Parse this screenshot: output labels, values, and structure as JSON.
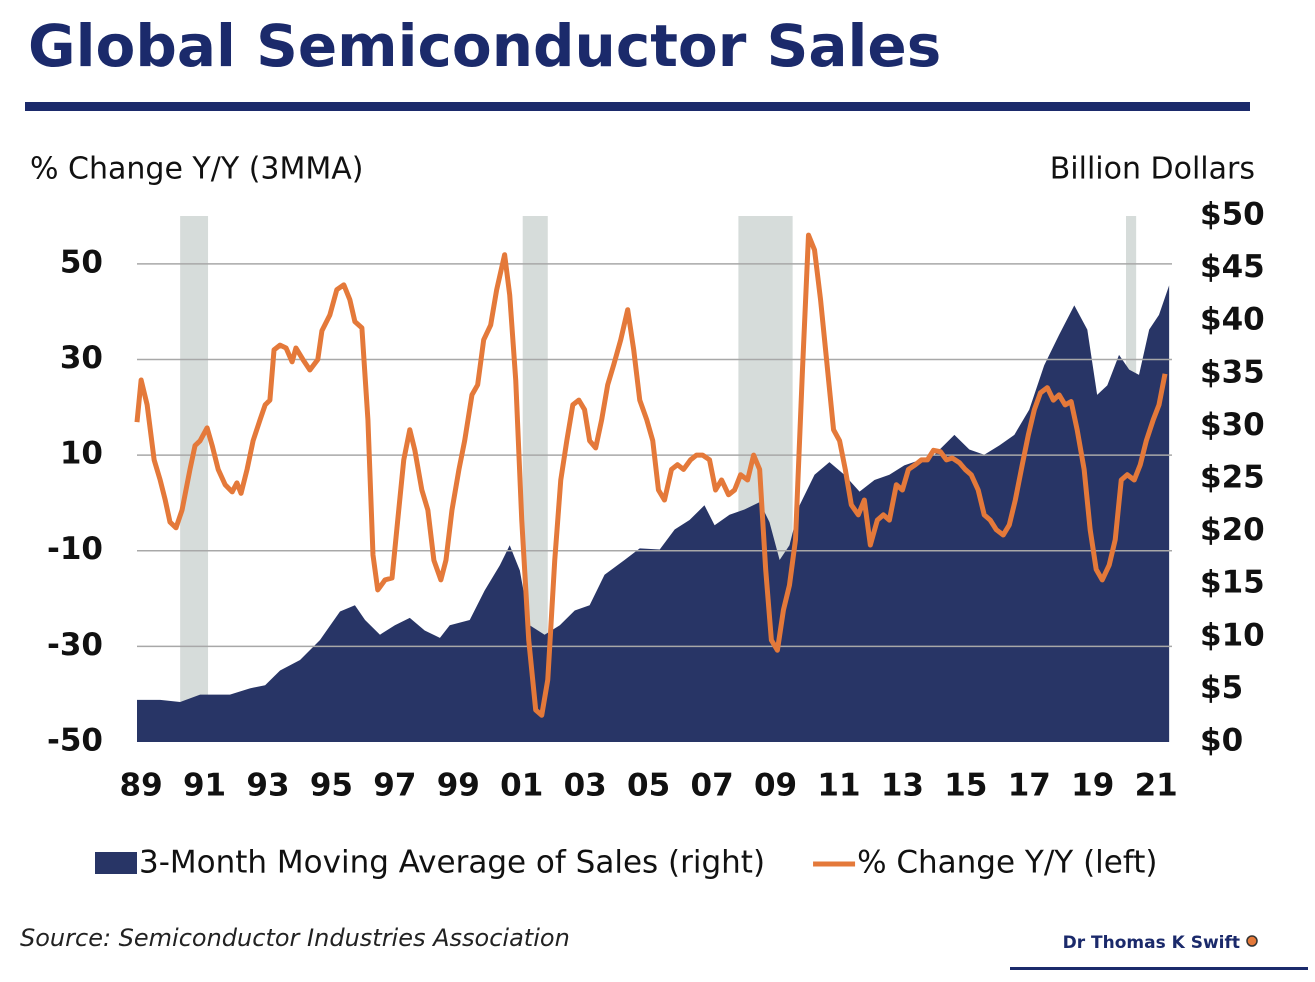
{
  "chart_data": {
    "type": "line",
    "title": "Global Semiconductor Sales",
    "ylabel": "% Change Y/Y (3MMA)",
    "y2label": "Billion Dollars",
    "source": "Source: Semiconductor Industries Association",
    "author": "Dr Thomas K Swift",
    "xlim": [
      1988.87,
      2021.5
    ],
    "xticks": [
      {
        "value": 1989,
        "label": "89"
      },
      {
        "value": 1991,
        "label": "91"
      },
      {
        "value": 1993,
        "label": "93"
      },
      {
        "value": 1995,
        "label": "95"
      },
      {
        "value": 1997,
        "label": "97"
      },
      {
        "value": 1999,
        "label": "99"
      },
      {
        "value": 2001,
        "label": "01"
      },
      {
        "value": 2003,
        "label": "03"
      },
      {
        "value": 2005,
        "label": "05"
      },
      {
        "value": 2007,
        "label": "07"
      },
      {
        "value": 2009,
        "label": "09"
      },
      {
        "value": 2011,
        "label": "11"
      },
      {
        "value": 2013,
        "label": "13"
      },
      {
        "value": 2015,
        "label": "15"
      },
      {
        "value": 2017,
        "label": "17"
      },
      {
        "value": 2019,
        "label": "19"
      },
      {
        "value": 2021,
        "label": "21"
      }
    ],
    "ylim": [
      -50,
      60
    ],
    "yticks": [
      -50,
      -30,
      -10,
      10,
      30,
      50
    ],
    "y2lim": [
      0,
      50
    ],
    "y2ticks": [
      {
        "value": 0,
        "label": "$0"
      },
      {
        "value": 5,
        "label": "$5"
      },
      {
        "value": 10,
        "label": "$10"
      },
      {
        "value": 15,
        "label": "$15"
      },
      {
        "value": 20,
        "label": "$20"
      },
      {
        "value": 25,
        "label": "$25"
      },
      {
        "value": 30,
        "label": "$30"
      },
      {
        "value": 35,
        "label": "$35"
      },
      {
        "value": 40,
        "label": "$40"
      },
      {
        "value": 45,
        "label": "$45"
      },
      {
        "value": 50,
        "label": "$50"
      }
    ],
    "grid": true,
    "recession_color": "#d6dcda",
    "recessions": [
      [
        1990.23,
        1991.11
      ],
      [
        2001.03,
        2001.82
      ],
      [
        2007.83,
        2009.54
      ],
      [
        2020.05,
        2020.37
      ]
    ],
    "series": [
      {
        "name": "3-Month Moving Average of Sales (right)",
        "type": "area",
        "axis": "y2",
        "color": "#283566",
        "x": [
          1988.87,
          1989.6,
          1990.23,
          1990.86,
          1991.8,
          1992.43,
          1992.91,
          1993.38,
          1994.01,
          1994.64,
          1995.27,
          1995.74,
          1996.06,
          1996.53,
          1997.0,
          1997.47,
          1997.94,
          1998.42,
          1998.73,
          1999.36,
          1999.83,
          2000.31,
          2000.62,
          2000.94,
          2001.25,
          2001.72,
          2002.2,
          2002.67,
          2003.14,
          2003.61,
          2004.24,
          2004.72,
          2005.35,
          2005.82,
          2006.29,
          2006.76,
          2007.08,
          2007.55,
          2008.02,
          2008.5,
          2008.81,
          2009.13,
          2009.44,
          2009.76,
          2010.23,
          2010.7,
          2011.17,
          2011.65,
          2012.12,
          2012.59,
          2013.06,
          2013.54,
          2014.01,
          2014.64,
          2015.11,
          2015.58,
          2016.06,
          2016.53,
          2017.0,
          2017.47,
          2017.94,
          2018.42,
          2018.83,
          2019.14,
          2019.46,
          2019.83,
          2020.15,
          2020.46,
          2020.78,
          2021.09,
          2021.41
        ],
        "values": [
          4.0,
          4.0,
          3.8,
          4.5,
          4.5,
          5.1,
          5.4,
          6.8,
          7.8,
          9.7,
          12.4,
          13.0,
          11.6,
          10.2,
          11.1,
          11.8,
          10.6,
          9.9,
          11.1,
          11.6,
          14.4,
          16.8,
          18.7,
          16.3,
          11.1,
          10.2,
          11.1,
          12.5,
          13.0,
          15.9,
          17.3,
          18.4,
          18.3,
          20.2,
          21.1,
          22.5,
          20.6,
          21.6,
          22.1,
          22.8,
          20.9,
          17.3,
          18.7,
          22.5,
          25.4,
          26.6,
          25.4,
          23.8,
          24.9,
          25.4,
          26.3,
          26.8,
          27.3,
          29.2,
          27.8,
          27.3,
          28.2,
          29.2,
          31.6,
          35.8,
          38.7,
          41.5,
          39.2,
          33.0,
          33.9,
          36.8,
          35.4,
          34.9,
          39.2,
          40.6,
          43.4
        ]
      },
      {
        "name": "% Change Y/Y (left)",
        "color": "#e4793a",
        "x": [
          1988.87,
          1989.0,
          1989.19,
          1989.41,
          1989.6,
          1989.76,
          1989.91,
          1990.1,
          1990.29,
          1990.54,
          1990.7,
          1990.86,
          1991.08,
          1991.24,
          1991.43,
          1991.65,
          1991.87,
          1992.02,
          1992.15,
          1992.34,
          1992.53,
          1992.75,
          1992.91,
          1993.06,
          1993.19,
          1993.38,
          1993.57,
          1993.76,
          1993.88,
          1994.1,
          1994.32,
          1994.57,
          1994.7,
          1994.95,
          1995.17,
          1995.39,
          1995.58,
          1995.74,
          1995.96,
          1996.15,
          1996.31,
          1996.46,
          1996.69,
          1996.91,
          1997.09,
          1997.28,
          1997.47,
          1997.63,
          1997.85,
          1998.04,
          1998.23,
          1998.45,
          1998.61,
          1998.8,
          1999.02,
          1999.2,
          1999.43,
          1999.61,
          1999.8,
          2000.02,
          2000.21,
          2000.46,
          2000.62,
          2000.81,
          2001.0,
          2001.22,
          2001.44,
          2001.63,
          2001.82,
          2002.04,
          2002.23,
          2002.42,
          2002.61,
          2002.8,
          2002.98,
          2003.14,
          2003.33,
          2003.52,
          2003.71,
          2003.9,
          2004.12,
          2004.34,
          2004.53,
          2004.72,
          2004.94,
          2005.13,
          2005.31,
          2005.5,
          2005.72,
          2005.91,
          2006.1,
          2006.32,
          2006.51,
          2006.7,
          2006.92,
          2007.11,
          2007.3,
          2007.52,
          2007.71,
          2007.9,
          2008.12,
          2008.31,
          2008.5,
          2008.69,
          2008.87,
          2009.06,
          2009.25,
          2009.44,
          2009.63,
          2009.85,
          2010.04,
          2010.23,
          2010.42,
          2010.61,
          2010.83,
          2011.02,
          2011.2,
          2011.39,
          2011.61,
          2011.8,
          2011.99,
          2012.21,
          2012.4,
          2012.59,
          2012.81,
          2013.0,
          2013.19,
          2013.41,
          2013.6,
          2013.79,
          2013.98,
          2014.2,
          2014.39,
          2014.57,
          2014.8,
          2014.98,
          2015.17,
          2015.39,
          2015.58,
          2015.77,
          2015.96,
          2016.18,
          2016.37,
          2016.56,
          2016.78,
          2016.97,
          2017.16,
          2017.35,
          2017.57,
          2017.76,
          2017.94,
          2018.13,
          2018.32,
          2018.51,
          2018.73,
          2018.92,
          2019.11,
          2019.3,
          2019.52,
          2019.71,
          2019.9,
          2020.09,
          2020.31,
          2020.5,
          2020.69,
          2020.91,
          2021.09,
          2021.28
        ],
        "values": [
          16.9,
          25.7,
          20.5,
          9,
          4.8,
          0.6,
          -4,
          -5.2,
          -1.5,
          7,
          12,
          13,
          15.7,
          12,
          7,
          3.8,
          2.3,
          4.2,
          2,
          7,
          13,
          17.4,
          20.5,
          21.5,
          32,
          33,
          32.4,
          29.5,
          32.4,
          30,
          27.8,
          30,
          36,
          39.3,
          44.6,
          45.6,
          42.5,
          37.9,
          36.6,
          17.4,
          -10.9,
          -18.2,
          -16.1,
          -15.7,
          -3.6,
          9,
          15.3,
          11,
          2.7,
          -1.5,
          -12,
          -16.1,
          -12,
          -1.5,
          7,
          13,
          22.6,
          24.7,
          34.1,
          37.2,
          44.6,
          51.9,
          43.5,
          25.7,
          -3.6,
          -28.7,
          -43.3,
          -44.4,
          -37,
          -12,
          4.8,
          13,
          20.5,
          21.5,
          19.5,
          13,
          11.5,
          17.4,
          24.7,
          28.9,
          34.1,
          40.4,
          32,
          21.5,
          17.4,
          13,
          2.7,
          0.6,
          7,
          8,
          7,
          9,
          10,
          10,
          9,
          2.7,
          4.8,
          1.7,
          2.7,
          5.9,
          4.8,
          10,
          7,
          -13.9,
          -28.7,
          -30.8,
          -22.4,
          -17.2,
          -7.7,
          27.8,
          56,
          52.9,
          42.5,
          29.9,
          15.3,
          13,
          7,
          -0.4,
          -2.5,
          0.6,
          -8.8,
          -3.6,
          -2.5,
          -3.6,
          3.8,
          2.7,
          7,
          8,
          9,
          9,
          11,
          10.7,
          9,
          9.4,
          8.4,
          7,
          5.9,
          2.7,
          -2.5,
          -3.6,
          -5.6,
          -6.7,
          -4.6,
          0.6,
          8,
          14.2,
          19.5,
          23,
          24.1,
          21.5,
          22.6,
          20.5,
          21.2,
          15.3,
          7,
          -5.6,
          -13.9,
          -16.1,
          -13,
          -7.7,
          4.8,
          5.9,
          4.8,
          8,
          13,
          17.4,
          20.5,
          27
        ]
      }
    ]
  }
}
